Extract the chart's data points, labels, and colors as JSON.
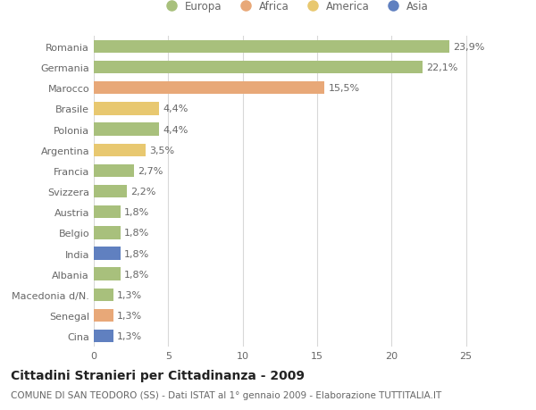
{
  "categories": [
    "Romania",
    "Germania",
    "Marocco",
    "Brasile",
    "Polonia",
    "Argentina",
    "Francia",
    "Svizzera",
    "Austria",
    "Belgio",
    "India",
    "Albania",
    "Macedonia d/N.",
    "Senegal",
    "Cina"
  ],
  "values": [
    23.9,
    22.1,
    15.5,
    4.4,
    4.4,
    3.5,
    2.7,
    2.2,
    1.8,
    1.8,
    1.8,
    1.8,
    1.3,
    1.3,
    1.3
  ],
  "labels": [
    "23,9%",
    "22,1%",
    "15,5%",
    "4,4%",
    "4,4%",
    "3,5%",
    "2,7%",
    "2,2%",
    "1,8%",
    "1,8%",
    "1,8%",
    "1,8%",
    "1,3%",
    "1,3%",
    "1,3%"
  ],
  "colors": [
    "#a8c07c",
    "#a8c07c",
    "#e8a878",
    "#e8c870",
    "#a8c07c",
    "#e8c870",
    "#a8c07c",
    "#a8c07c",
    "#a8c07c",
    "#a8c07c",
    "#6080c0",
    "#a8c07c",
    "#a8c07c",
    "#e8a878",
    "#6080c0"
  ],
  "legend_labels": [
    "Europa",
    "Africa",
    "America",
    "Asia"
  ],
  "legend_colors": [
    "#a8c07c",
    "#e8a878",
    "#e8c870",
    "#6080c0"
  ],
  "title": "Cittadini Stranieri per Cittadinanza - 2009",
  "subtitle": "COMUNE DI SAN TEODORO (SS) - Dati ISTAT al 1° gennaio 2009 - Elaborazione TUTTITALIA.IT",
  "xlim": [
    0,
    27
  ],
  "xticks": [
    0,
    5,
    10,
    15,
    20,
    25
  ],
  "background_color": "#ffffff",
  "grid_color": "#d8d8d8",
  "bar_height": 0.62,
  "label_fontsize": 8,
  "tick_fontsize": 8,
  "title_fontsize": 10,
  "subtitle_fontsize": 7.5,
  "text_color": "#666666",
  "title_color": "#222222"
}
